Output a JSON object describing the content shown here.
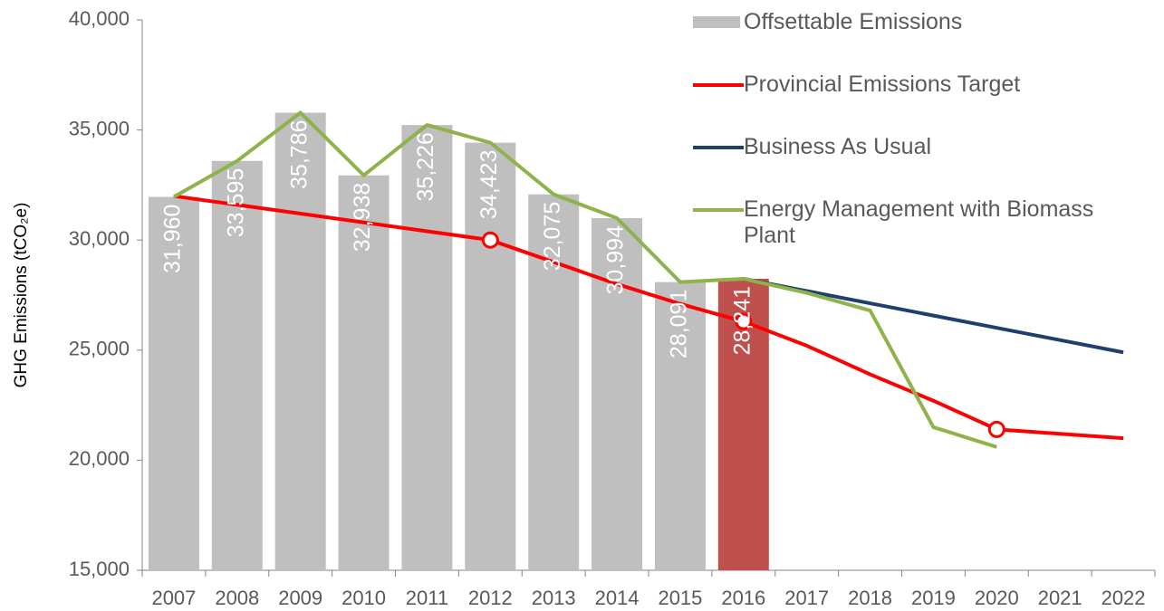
{
  "chart_data": {
    "type": "bar_line",
    "y_label": "GHG Emissions (tCO₂e)",
    "categories": [
      "2007",
      "2008",
      "2009",
      "2010",
      "2011",
      "2012",
      "2013",
      "2014",
      "2015",
      "2016",
      "2017",
      "2018",
      "2019",
      "2020",
      "2021",
      "2022"
    ],
    "ylim": [
      15000,
      40000
    ],
    "yticks": [
      {
        "value": 15000,
        "label": "15,000"
      },
      {
        "value": 20000,
        "label": "20,000"
      },
      {
        "value": 25000,
        "label": "25,000"
      },
      {
        "value": 30000,
        "label": "30,000"
      },
      {
        "value": 35000,
        "label": "35,000"
      },
      {
        "value": 40000,
        "label": "40,000"
      }
    ],
    "legend": "top-right",
    "series": [
      {
        "name": "Offsettable Emissions",
        "kind": "bar",
        "color": "#bfbfbf",
        "colors": [
          "#bfbfbf",
          "#bfbfbf",
          "#bfbfbf",
          "#bfbfbf",
          "#bfbfbf",
          "#bfbfbf",
          "#bfbfbf",
          "#bfbfbf",
          "#bfbfbf",
          "#c0504d",
          null,
          null,
          null,
          null,
          null,
          null
        ],
        "values": [
          31960,
          33595,
          35786,
          32938,
          35226,
          34423,
          32075,
          30994,
          28091,
          28241,
          null,
          null,
          null,
          null,
          null,
          null
        ],
        "value_labels": [
          "31,960",
          "33,595",
          "35,786",
          "32,938",
          "35,226",
          "34,423",
          "32,075",
          "30,994",
          "28,091",
          "28,241",
          null,
          null,
          null,
          null,
          null,
          null
        ]
      },
      {
        "name": "Provincial Emissions Target",
        "kind": "line",
        "color": "#ff0000",
        "markers": [
          5,
          9,
          13
        ],
        "values": [
          32000,
          31600,
          31200,
          30800,
          30400,
          30000,
          29000,
          28000,
          27100,
          26300,
          25200,
          23900,
          22700,
          21400,
          21200,
          21000
        ]
      },
      {
        "name": "Business As Usual",
        "kind": "line",
        "color": "#1f3f6e",
        "values": [
          null,
          null,
          null,
          null,
          null,
          null,
          null,
          null,
          null,
          28241,
          27684,
          27127,
          26570,
          26013,
          25456,
          24900
        ]
      },
      {
        "name": "Energy Management with Biomass Plant",
        "kind": "line",
        "color": "#8db34a",
        "values": [
          31960,
          33595,
          35786,
          32938,
          35226,
          34423,
          32075,
          30994,
          28091,
          28241,
          27600,
          26800,
          21500,
          20600,
          null,
          null
        ]
      }
    ]
  }
}
